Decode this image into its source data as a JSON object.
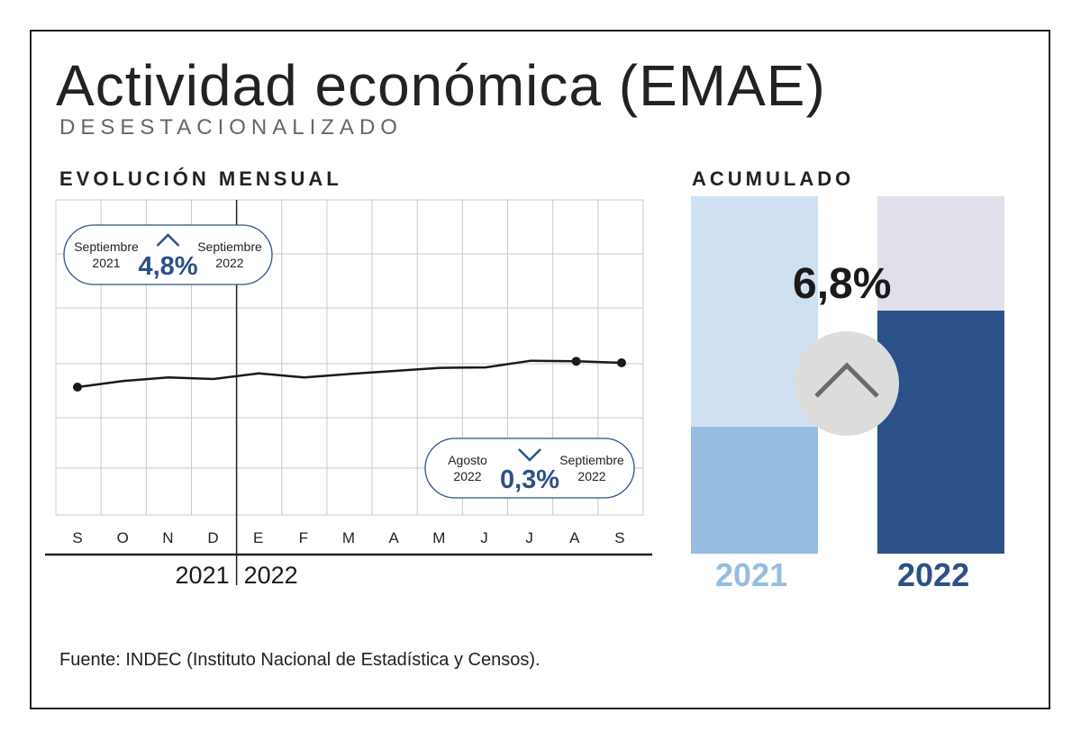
{
  "title": "Actividad económica (EMAE)",
  "subtitle": "DESESTACIONALIZADO",
  "source": "Fuente: INDEC (Instituto Nacional de Estadística y Censos).",
  "chart_data": [
    {
      "type": "line",
      "title": "EVOLUCIÓN MENSUAL",
      "x": [
        "S",
        "O",
        "N",
        "D",
        "E",
        "F",
        "M",
        "A",
        "M",
        "J",
        "J",
        "A",
        "S"
      ],
      "year_labels": [
        "2021",
        "2022"
      ],
      "series": [
        {
          "values": [
            100.0,
            101.2,
            101.9,
            101.6,
            102.7,
            101.9,
            102.6,
            103.2,
            103.8,
            103.9,
            105.2,
            105.1,
            104.8
          ],
          "color": "#1a1a1a"
        }
      ],
      "markers_at": [
        0,
        11,
        12
      ],
      "grid": true,
      "annotations": [
        {
          "left_label": [
            "Septiembre",
            "2021"
          ],
          "right_label": [
            "Septiembre",
            "2022"
          ],
          "value": "4,8%",
          "direction": "up"
        },
        {
          "left_label": [
            "Agosto",
            "2022"
          ],
          "right_label": [
            "Septiembre",
            "2022"
          ],
          "value": "0,3%",
          "direction": "down"
        }
      ]
    },
    {
      "type": "bar",
      "title": "ACUMULADO",
      "categories": [
        "2021",
        "2022"
      ],
      "values_fraction_of_scale": [
        0.355,
        0.68
      ],
      "change_label": "6,8%",
      "direction": "up",
      "colors": {
        "2021_background": "#cfe1f1",
        "2021_value": "#95bde0",
        "2022_background": "#dfe0ea",
        "2022_value": "#2c5088",
        "accent": "#2c5088",
        "circle": "#dcdcdc",
        "chevron": "#6b6b6b"
      }
    }
  ]
}
